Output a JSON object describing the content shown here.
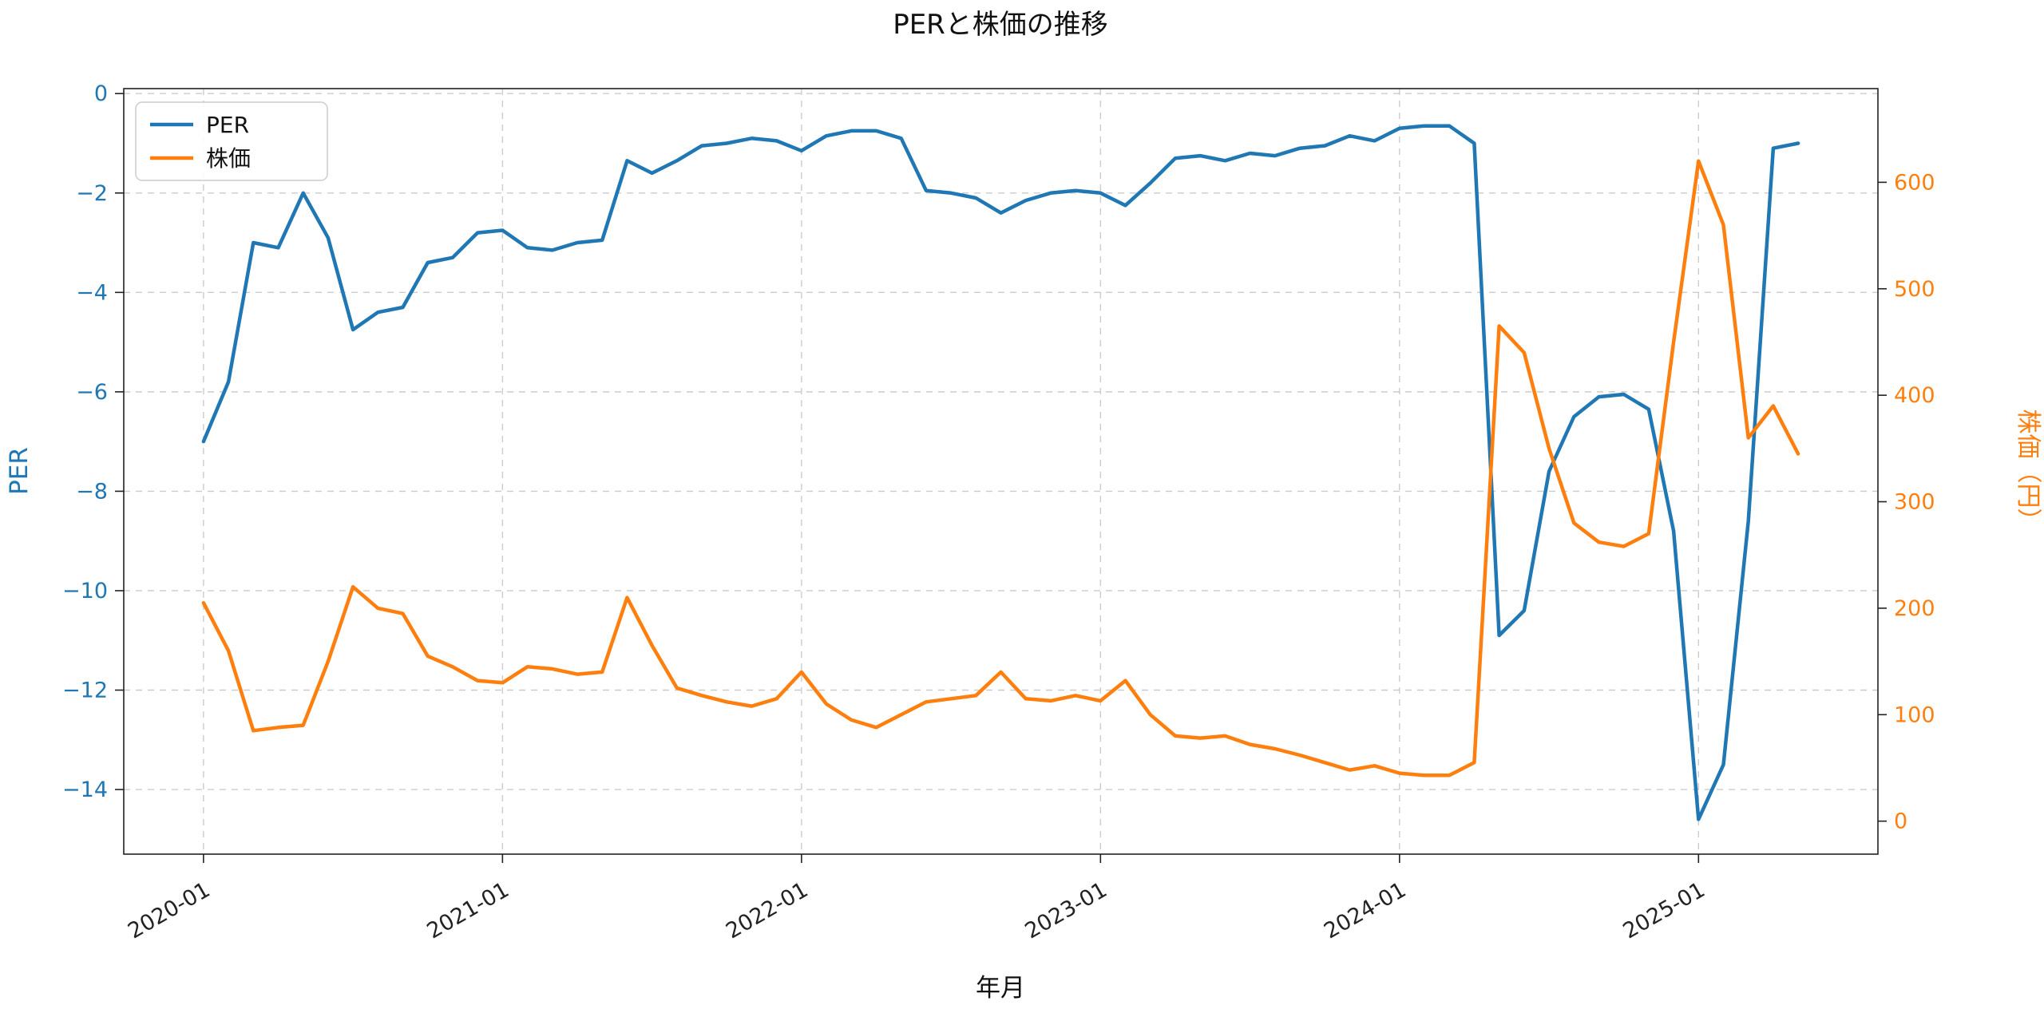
{
  "chart_data": {
    "type": "line",
    "title": "PERと株価の推移",
    "xlabel": "年月",
    "grid": true,
    "legend": {
      "position": "upper-left",
      "entries": [
        "PER",
        "株価"
      ]
    },
    "xlim": [
      -3.2,
      67.2
    ],
    "left_axis": {
      "label": "PER",
      "color": "#1f77b4",
      "ticks": [
        0,
        -2,
        -4,
        -6,
        -8,
        -10,
        -12,
        -14
      ],
      "ylim": [
        -15.3,
        0.1
      ]
    },
    "right_axis": {
      "label": "株価（円）",
      "color": "#ff7f0e",
      "ticks": [
        0,
        100,
        200,
        300,
        400,
        500,
        600
      ],
      "ylim": [
        -31,
        688
      ]
    },
    "x_ticks": {
      "positions": [
        0,
        12,
        24,
        36,
        48,
        60
      ],
      "labels": [
        "2020-01",
        "2021-01",
        "2022-01",
        "2023-01",
        "2024-01",
        "2025-01"
      ]
    },
    "x": [
      "2020-01",
      "2020-02",
      "2020-03",
      "2020-04",
      "2020-05",
      "2020-06",
      "2020-07",
      "2020-08",
      "2020-09",
      "2020-10",
      "2020-11",
      "2020-12",
      "2021-01",
      "2021-02",
      "2021-03",
      "2021-04",
      "2021-05",
      "2021-06",
      "2021-07",
      "2021-08",
      "2021-09",
      "2021-10",
      "2021-11",
      "2021-12",
      "2022-01",
      "2022-02",
      "2022-03",
      "2022-04",
      "2022-05",
      "2022-06",
      "2022-07",
      "2022-08",
      "2022-09",
      "2022-10",
      "2022-11",
      "2022-12",
      "2023-01",
      "2023-02",
      "2023-03",
      "2023-04",
      "2023-05",
      "2023-06",
      "2023-07",
      "2023-08",
      "2023-09",
      "2023-10",
      "2023-11",
      "2023-12",
      "2024-01",
      "2024-02",
      "2024-03",
      "2024-04",
      "2024-05",
      "2024-06",
      "2024-07",
      "2024-08",
      "2024-09",
      "2024-10",
      "2024-11",
      "2024-12",
      "2025-01",
      "2025-02",
      "2025-03",
      "2025-04",
      "2025-05"
    ],
    "series": [
      {
        "name": "PER",
        "axis": "left",
        "color": "#1f77b4",
        "values": [
          -7.0,
          -5.8,
          -3.0,
          -3.1,
          -2.0,
          -2.9,
          -4.75,
          -4.4,
          -4.3,
          -3.4,
          -3.3,
          -2.8,
          -2.75,
          -3.1,
          -3.15,
          -3.0,
          -2.95,
          -1.35,
          -1.6,
          -1.35,
          -1.05,
          -1.0,
          -0.9,
          -0.95,
          -1.15,
          -0.85,
          -0.75,
          -0.75,
          -0.9,
          -1.95,
          -2.0,
          -2.1,
          -2.4,
          -2.15,
          -2.0,
          -1.95,
          -2.0,
          -2.25,
          -1.8,
          -1.3,
          -1.25,
          -1.35,
          -1.2,
          -1.25,
          -1.1,
          -1.05,
          -0.85,
          -0.95,
          -0.7,
          -0.65,
          -0.65,
          -1.0,
          -10.9,
          -10.4,
          -7.6,
          -6.5,
          -6.1,
          -6.05,
          -6.35,
          -8.8,
          -14.6,
          -13.5,
          -8.6,
          -1.1,
          -1.0
        ]
      },
      {
        "name": "株価",
        "axis": "right",
        "color": "#ff7f0e",
        "values": [
          205,
          160,
          85,
          88,
          90,
          150,
          220,
          200,
          195,
          155,
          145,
          132,
          130,
          145,
          143,
          138,
          140,
          210,
          165,
          125,
          118,
          112,
          108,
          115,
          140,
          110,
          95,
          88,
          100,
          112,
          115,
          118,
          140,
          115,
          113,
          118,
          113,
          132,
          100,
          80,
          78,
          80,
          72,
          68,
          62,
          55,
          48,
          52,
          45,
          43,
          43,
          55,
          465,
          440,
          350,
          280,
          262,
          258,
          270,
          450,
          620,
          560,
          360,
          390,
          345
        ]
      }
    ]
  }
}
